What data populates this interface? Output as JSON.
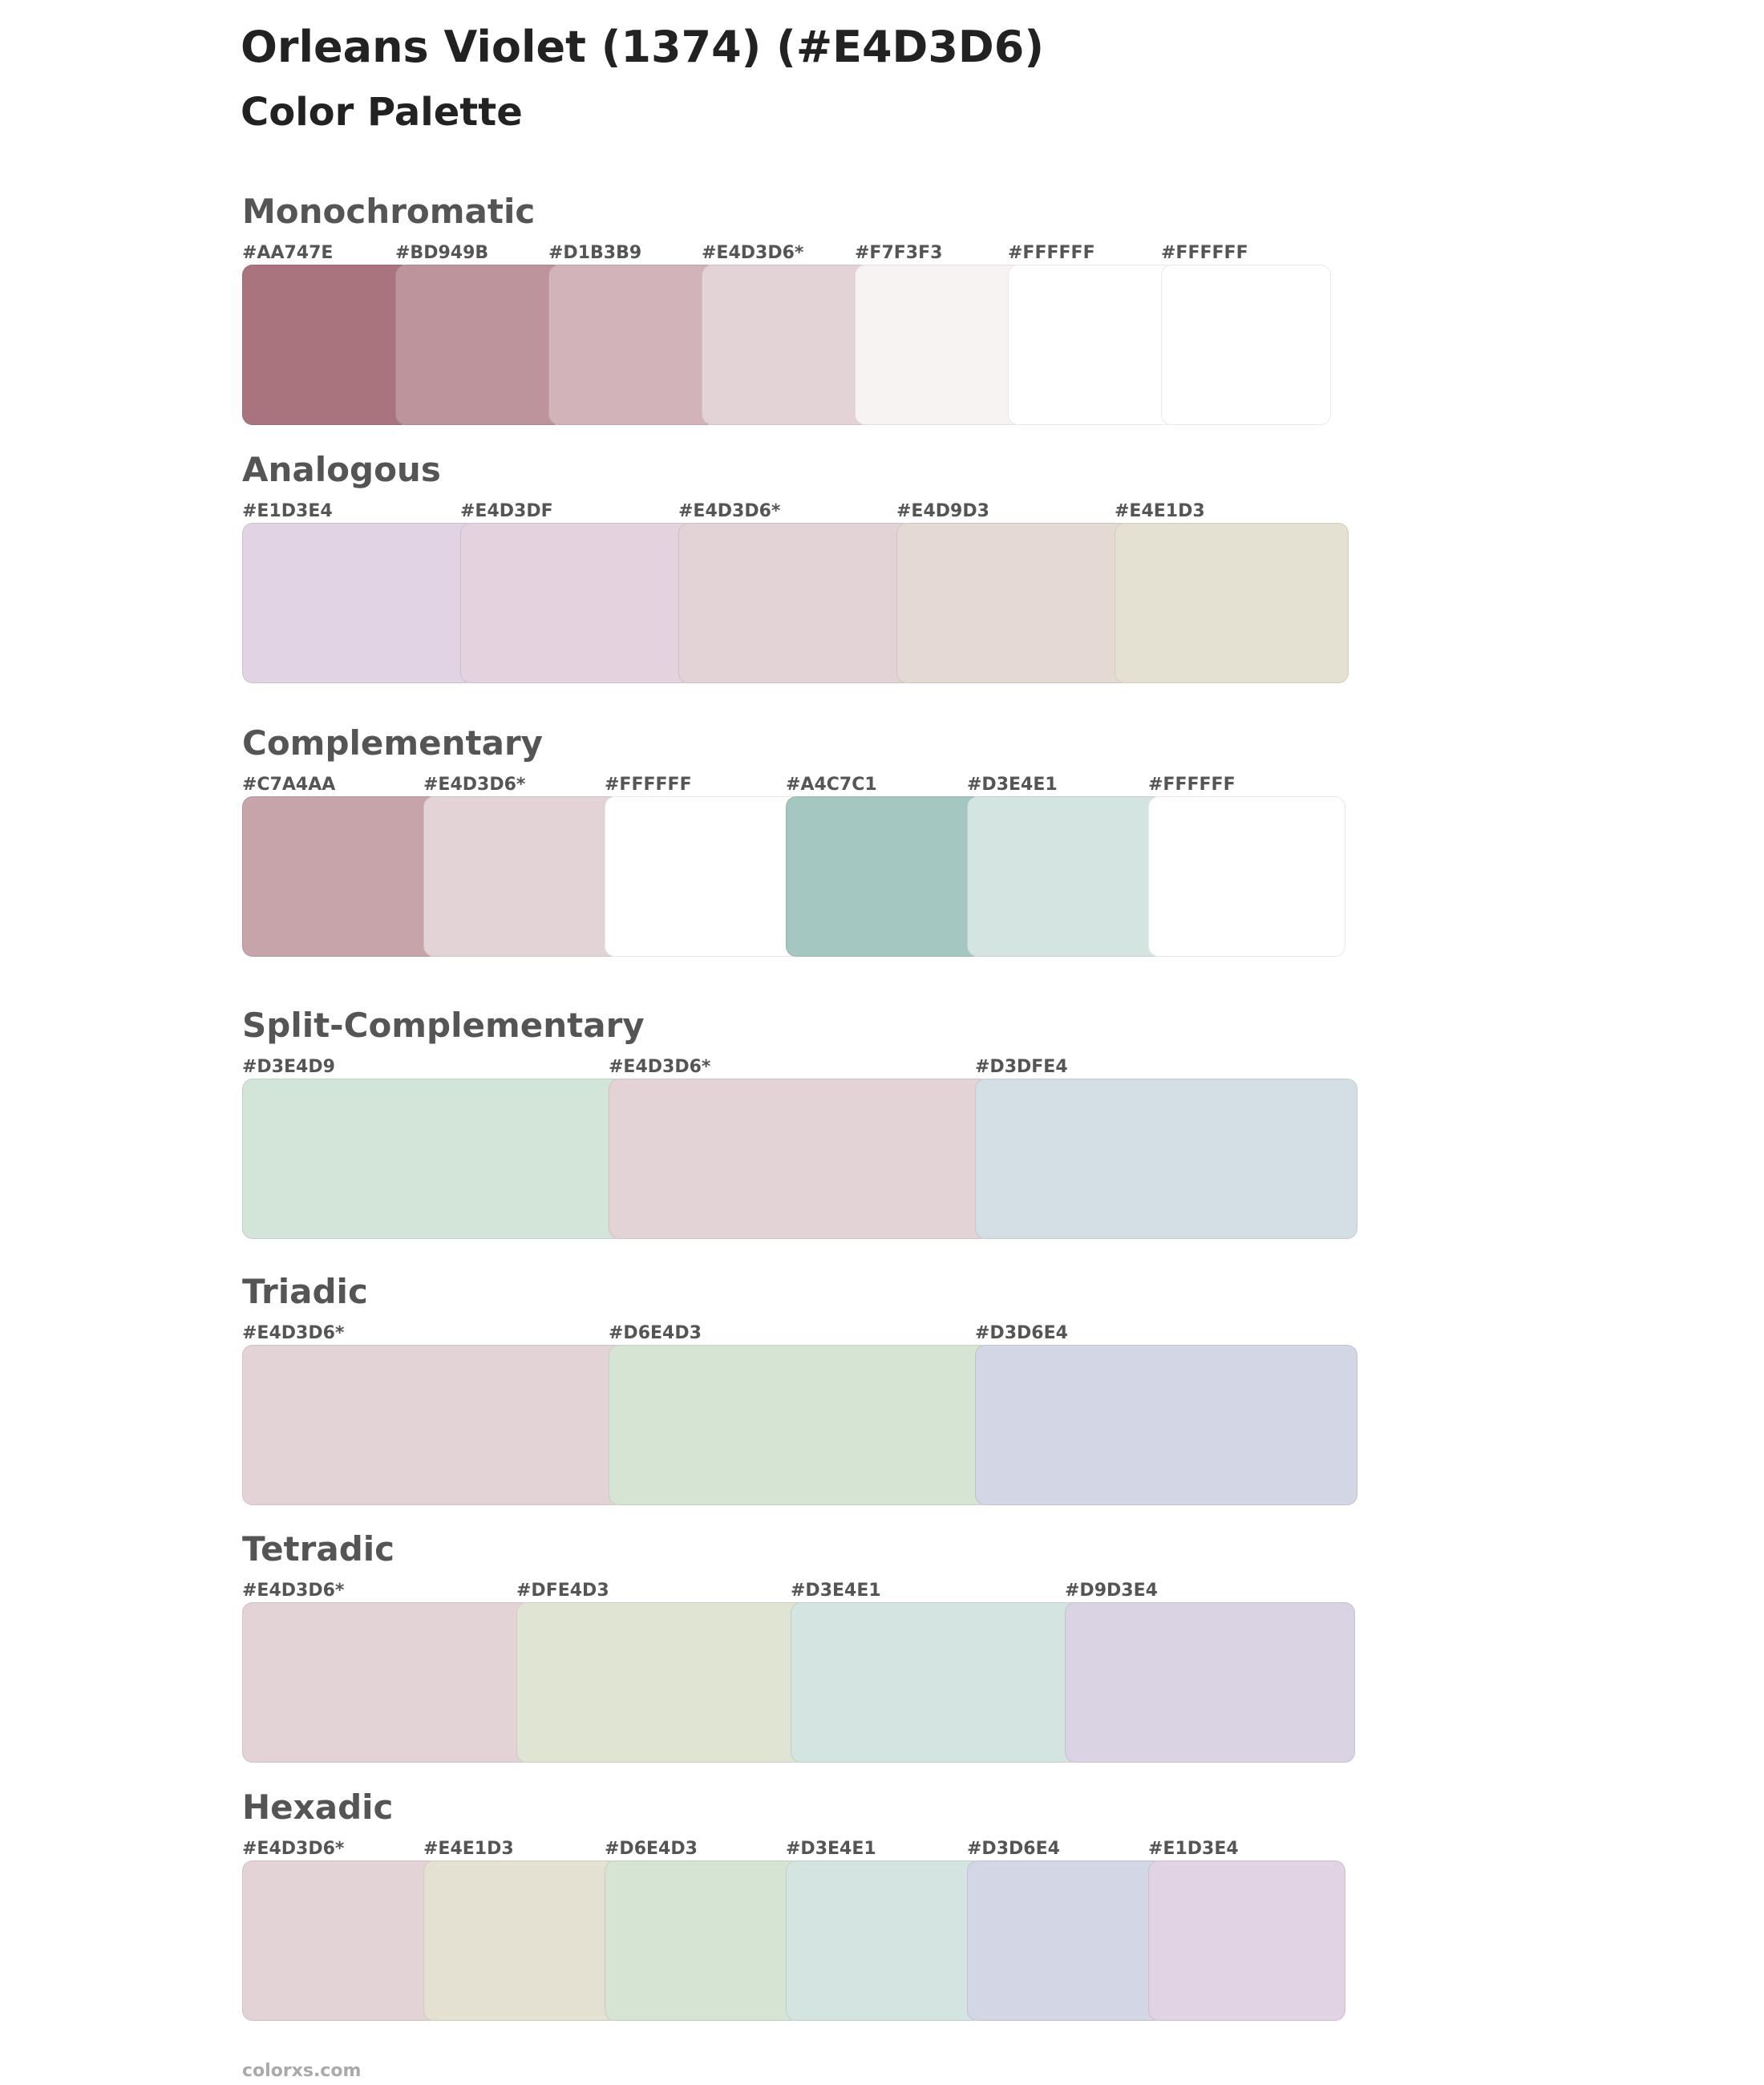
{
  "header": {
    "title": "Orleans Violet (1374) (#E4D3D6)",
    "subtitle": "Color Palette"
  },
  "sections": [
    {
      "name": "Monochromatic",
      "swatches": [
        {
          "label": "#AA747E",
          "color": "#AA747E"
        },
        {
          "label": "#BD949B",
          "color": "#BD949B"
        },
        {
          "label": "#D1B3B9",
          "color": "#D1B3B9"
        },
        {
          "label": "#E4D3D6*",
          "color": "#E4D3D6"
        },
        {
          "label": "#F7F3F3",
          "color": "#F7F3F3"
        },
        {
          "label": "#FFFFFF",
          "color": "#FFFFFF"
        },
        {
          "label": "#FFFFFF",
          "color": "#FFFFFF"
        }
      ]
    },
    {
      "name": "Analogous",
      "swatches": [
        {
          "label": "#E1D3E4",
          "color": "#E1D3E4"
        },
        {
          "label": "#E4D3DF",
          "color": "#E4D3DF"
        },
        {
          "label": "#E4D3D6*",
          "color": "#E4D3D6"
        },
        {
          "label": "#E4D9D3",
          "color": "#E4D9D3"
        },
        {
          "label": "#E4E1D3",
          "color": "#E4E1D3"
        }
      ]
    },
    {
      "name": "Complementary",
      "swatches": [
        {
          "label": "#C7A4AA",
          "color": "#C7A4AA"
        },
        {
          "label": "#E4D3D6*",
          "color": "#E4D3D6"
        },
        {
          "label": "#FFFFFF",
          "color": "#FFFFFF"
        },
        {
          "label": "#A4C7C1",
          "color": "#A4C7C1"
        },
        {
          "label": "#D3E4E1",
          "color": "#D3E4E1"
        },
        {
          "label": "#FFFFFF",
          "color": "#FFFFFF"
        }
      ]
    },
    {
      "name": "Split-Complementary",
      "swatches": [
        {
          "label": "#D3E4D9",
          "color": "#D3E4D9"
        },
        {
          "label": "#E4D3D6*",
          "color": "#E4D3D6"
        },
        {
          "label": "#D3DFE4",
          "color": "#D3DFE4"
        }
      ]
    },
    {
      "name": "Triadic",
      "swatches": [
        {
          "label": "#E4D3D6*",
          "color": "#E4D3D6"
        },
        {
          "label": "#D6E4D3",
          "color": "#D6E4D3"
        },
        {
          "label": "#D3D6E4",
          "color": "#D3D6E4"
        }
      ]
    },
    {
      "name": "Tetradic",
      "swatches": [
        {
          "label": "#E4D3D6*",
          "color": "#E4D3D6"
        },
        {
          "label": "#DFE4D3",
          "color": "#DFE4D3"
        },
        {
          "label": "#D3E4E1",
          "color": "#D3E4E1"
        },
        {
          "label": "#D9D3E4",
          "color": "#D9D3E4"
        }
      ]
    },
    {
      "name": "Hexadic",
      "swatches": [
        {
          "label": "#E4D3D6*",
          "color": "#E4D3D6"
        },
        {
          "label": "#E4E1D3",
          "color": "#E4E1D3"
        },
        {
          "label": "#D6E4D3",
          "color": "#D6E4D3"
        },
        {
          "label": "#D3E4E1",
          "color": "#D3E4E1"
        },
        {
          "label": "#D3D6E4",
          "color": "#D3D6E4"
        },
        {
          "label": "#E1D3E4",
          "color": "#E1D3E4"
        }
      ]
    }
  ],
  "footer": {
    "site": "colorxs.com"
  }
}
